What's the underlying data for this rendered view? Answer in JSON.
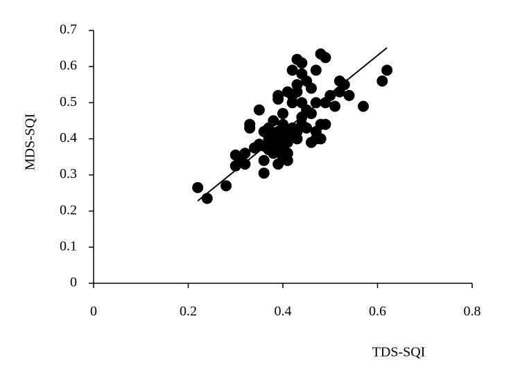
{
  "chart_data": {
    "type": "scatter",
    "x_label": "TDS-SQI",
    "y_label": "MDS-SQI",
    "xlim": [
      0,
      0.8
    ],
    "xticks": [
      0,
      0.2,
      0.4,
      0.6,
      0.8
    ],
    "ylim": [
      0,
      0.7
    ],
    "yticks": [
      0,
      0.1,
      0.2,
      0.3,
      0.4,
      0.5,
      0.6,
      0.7
    ],
    "color": "#000000",
    "x": [
      0.22,
      0.24,
      0.28,
      0.3,
      0.3,
      0.31,
      0.32,
      0.32,
      0.33,
      0.33,
      0.34,
      0.35,
      0.35,
      0.36,
      0.36,
      0.36,
      0.36,
      0.37,
      0.37,
      0.37,
      0.38,
      0.38,
      0.38,
      0.38,
      0.39,
      0.39,
      0.39,
      0.39,
      0.39,
      0.4,
      0.4,
      0.4,
      0.4,
      0.4,
      0.41,
      0.41,
      0.41,
      0.41,
      0.41,
      0.42,
      0.42,
      0.42,
      0.42,
      0.42,
      0.43,
      0.43,
      0.43,
      0.43,
      0.43,
      0.44,
      0.44,
      0.44,
      0.44,
      0.44,
      0.45,
      0.45,
      0.45,
      0.46,
      0.46,
      0.46,
      0.47,
      0.47,
      0.47,
      0.47,
      0.48,
      0.48,
      0.48,
      0.49,
      0.49,
      0.49,
      0.5,
      0.51,
      0.52,
      0.52,
      0.53,
      0.54,
      0.57,
      0.61,
      0.62
    ],
    "y": [
      0.265,
      0.235,
      0.27,
      0.325,
      0.355,
      0.345,
      0.36,
      0.33,
      0.44,
      0.43,
      0.375,
      0.385,
      0.48,
      0.305,
      0.34,
      0.38,
      0.42,
      0.4,
      0.37,
      0.43,
      0.39,
      0.41,
      0.45,
      0.36,
      0.33,
      0.52,
      0.51,
      0.42,
      0.38,
      0.35,
      0.44,
      0.4,
      0.47,
      0.37,
      0.34,
      0.53,
      0.42,
      0.39,
      0.36,
      0.59,
      0.52,
      0.5,
      0.41,
      0.43,
      0.55,
      0.53,
      0.42,
      0.4,
      0.62,
      0.61,
      0.58,
      0.5,
      0.46,
      0.44,
      0.56,
      0.48,
      0.43,
      0.54,
      0.47,
      0.39,
      0.59,
      0.5,
      0.42,
      0.4,
      0.635,
      0.44,
      0.4,
      0.625,
      0.44,
      0.5,
      0.52,
      0.49,
      0.56,
      0.53,
      0.55,
      0.52,
      0.49,
      0.56,
      0.59
    ],
    "trendline": {
      "x": [
        0.22,
        0.62
      ],
      "y": [
        0.228,
        0.652
      ]
    }
  }
}
